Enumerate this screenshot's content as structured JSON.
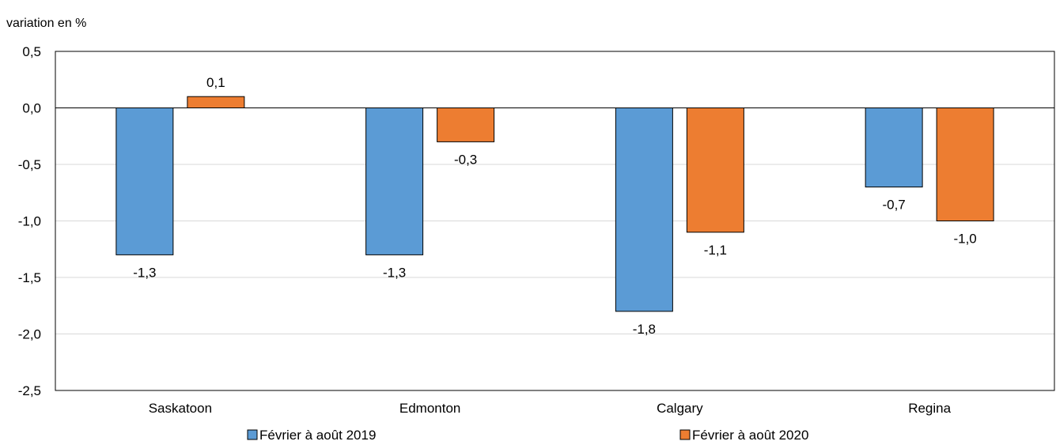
{
  "chart_data": {
    "type": "bar",
    "title": "",
    "ylabel": "variation en %",
    "xlabel": "",
    "categories": [
      "Saskatoon",
      "Edmonton",
      "Calgary",
      "Regina"
    ],
    "series": [
      {
        "name": "Février à août 2019",
        "values": [
          -1.3,
          -1.3,
          -1.8,
          -0.7
        ],
        "labels": [
          "-1,3",
          "-1,3",
          "-1,8",
          "-0,7"
        ],
        "color": "#5b9bd5"
      },
      {
        "name": "Février à août 2020",
        "values": [
          0.1,
          -0.3,
          -1.1,
          -1.0
        ],
        "labels": [
          "0,1",
          "-0,3",
          "-1,1",
          "-1,0"
        ],
        "color": "#ed7d31"
      }
    ],
    "ylim": [
      -2.5,
      0.5
    ],
    "yticks": [
      0.5,
      0.0,
      -0.5,
      -1.0,
      -1.5,
      -2.0,
      -2.5
    ],
    "ytick_labels": [
      "0,5",
      "0,0",
      "-0,5",
      "-1,0",
      "-1,5",
      "-2,0",
      "-2,5"
    ],
    "grid": true,
    "legend_position": "bottom"
  }
}
